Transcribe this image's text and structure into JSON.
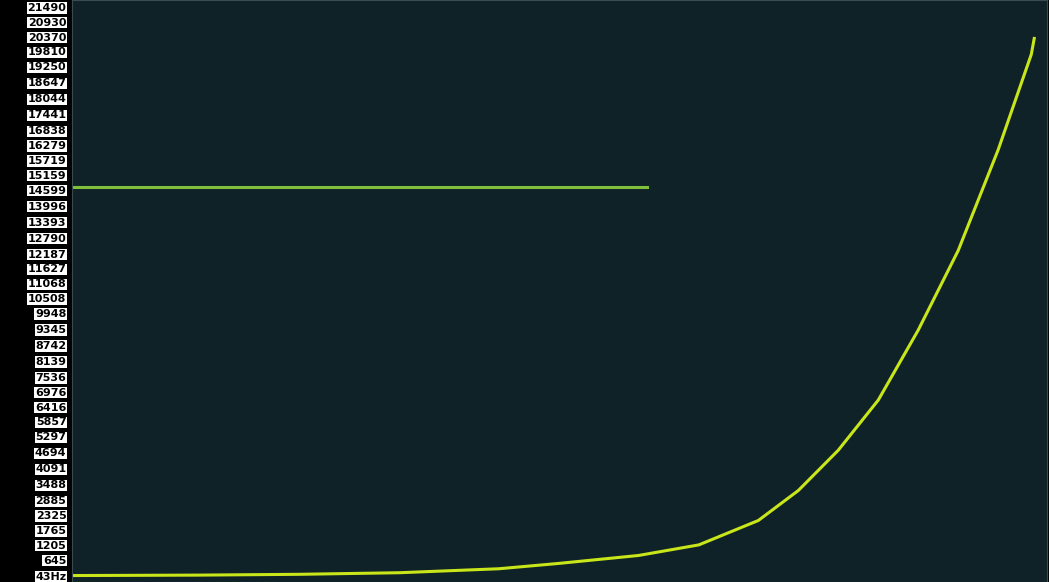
{
  "chart_data": {
    "type": "line",
    "tick_labels": "y",
    "grid": false,
    "xlim": [
      0,
      100
    ],
    "ylim": [
      -200,
      21750
    ],
    "yticks": [
      {
        "value": 43,
        "label": "43Hz"
      },
      645,
      1205,
      1765,
      2325,
      2885,
      3488,
      4091,
      4694,
      5297,
      5857,
      6416,
      6976,
      7536,
      8139,
      8742,
      9345,
      9948,
      10508,
      11068,
      11627,
      12187,
      12790,
      13393,
      13996,
      14599,
      15159,
      15719,
      16279,
      16838,
      17441,
      18044,
      18647,
      19250,
      19810,
      20370,
      20930,
      21490
    ],
    "series": [
      {
        "color": "#c8e619",
        "line_style": "solid",
        "x": [
          0,
          13.1,
          23.3,
          33.6,
          43.8,
          49.9,
          58.1,
          64.3,
          70.4,
          74.5,
          78.6,
          82.7,
          86.8,
          90.9,
          95.0,
          98.4,
          98.7
        ],
        "values": [
          43,
          60,
          90,
          150,
          300,
          500,
          800,
          1200,
          2120,
          3250,
          4770,
          6660,
          9300,
          12300,
          16100,
          19700,
          20300
        ]
      },
      {
        "color": "#7fbf3a",
        "line_style": "solid",
        "x": [
          0,
          20,
          30,
          40,
          50,
          59
        ],
        "values": [
          14700,
          14700,
          14700,
          14700,
          14700,
          14700
        ]
      }
    ]
  }
}
